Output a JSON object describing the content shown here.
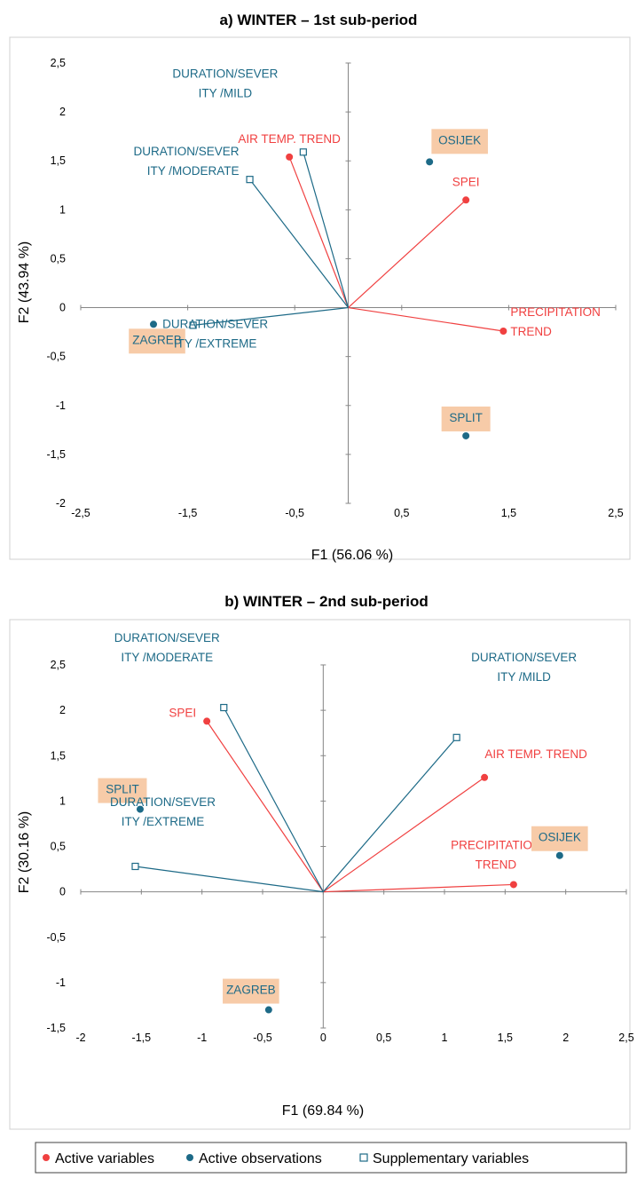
{
  "colors": {
    "active_variables": "#f04040",
    "active_observations": "#1d6a87",
    "supplementary_variables": "#1d6a87",
    "label_highlight": "#f7cba8"
  },
  "legend": [
    {
      "key": "active_variables",
      "label": "Active variables",
      "marker": "circle"
    },
    {
      "key": "active_observations",
      "label": "Active observations",
      "marker": "circle"
    },
    {
      "key": "supplementary_variables",
      "label": "Supplementary variables",
      "marker": "open-square"
    }
  ],
  "chart_data": [
    {
      "type": "scatter",
      "title": "a) WINTER – 1st sub-period",
      "xlabel": "F1 (56.06 %)",
      "ylabel": "F2 (43.94 %)",
      "xlim": [
        -2.5,
        2.5
      ],
      "ylim": [
        -2,
        2.5
      ],
      "xticks": [
        "-2,5",
        "-1,5",
        "-0,5",
        "0,5",
        "1,5",
        "2,5"
      ],
      "yticks": [
        "2,5",
        "2",
        "1,5",
        "1",
        "0,5",
        "0",
        "-0,5",
        "-1",
        "-1,5",
        "-2"
      ],
      "grid": false,
      "series": [
        {
          "name": "Active variables",
          "color": "#f04040",
          "marker": "circle",
          "vectors": true,
          "points": [
            {
              "x": -0.55,
              "y": 1.54,
              "label": [
                "AIR TEMP. TREND"
              ],
              "anchor": "above"
            },
            {
              "x": 1.1,
              "y": 1.1,
              "label": [
                "SPEI"
              ],
              "anchor": "above"
            },
            {
              "x": 1.45,
              "y": -0.24,
              "label": [
                "PRECIPITATION",
                "TREND"
              ],
              "anchor": "right"
            }
          ]
        },
        {
          "name": "Active observations",
          "color": "#1d6a87",
          "marker": "circle",
          "vectors": false,
          "points": [
            {
              "x": 0.76,
              "y": 1.49,
              "label": [
                "OSIJEK"
              ],
              "anchor": "above-right",
              "highlight": true
            },
            {
              "x": -1.82,
              "y": -0.17,
              "label": [
                "ZAGREB"
              ],
              "anchor": "below",
              "highlight": true
            },
            {
              "x": 1.1,
              "y": -1.31,
              "label": [
                "SPLIT"
              ],
              "anchor": "above",
              "highlight": true
            }
          ]
        },
        {
          "name": "Supplementary variables",
          "color": "#1d6a87",
          "marker": "open-square",
          "vectors": true,
          "points": [
            {
              "x": -0.42,
              "y": 1.59,
              "label": [
                "DURATION/SEVER",
                "ITY /MILD"
              ],
              "anchor": "mild-a"
            },
            {
              "x": -0.92,
              "y": 1.31,
              "label": [
                "DURATION/SEVER",
                "ITY /MODERATE"
              ],
              "anchor": "left"
            },
            {
              "x": -1.45,
              "y": -0.18,
              "label": [
                "DURATION/SEVER",
                "ITY /EXTREME"
              ],
              "anchor": "below-right"
            }
          ]
        }
      ]
    },
    {
      "type": "scatter",
      "title": "b) WINTER –  2nd sub-period",
      "xlabel": "F1 (69.84 %)",
      "ylabel": "F2 (30.16 %)",
      "xlim": [
        -2,
        2.5
      ],
      "ylim": [
        -1.5,
        2.5
      ],
      "xticks": [
        "-2",
        "-1,5",
        "-1",
        "-0,5",
        "0",
        "0,5",
        "1",
        "1,5",
        "2",
        "2,5"
      ],
      "yticks": [
        "2,5",
        "2",
        "1,5",
        "1",
        "0,5",
        "0",
        "-0,5",
        "-1",
        "-1,5"
      ],
      "grid": false,
      "series": [
        {
          "name": "Active variables",
          "color": "#f04040",
          "marker": "circle",
          "vectors": true,
          "points": [
            {
              "x": -0.96,
              "y": 1.88,
              "label": [
                "SPEI"
              ],
              "anchor": "left"
            },
            {
              "x": 1.33,
              "y": 1.26,
              "label": [
                "AIR TEMP. TREND"
              ],
              "anchor": "above-right-small"
            },
            {
              "x": 1.57,
              "y": 0.08,
              "label": [
                "PRECIPITATION",
                "TREND"
              ],
              "anchor": "above-left"
            }
          ]
        },
        {
          "name": "Active observations",
          "color": "#1d6a87",
          "marker": "circle",
          "vectors": false,
          "points": [
            {
              "x": -1.51,
              "y": 0.91,
              "label": [
                "SPLIT"
              ],
              "anchor": "above-left",
              "highlight": true
            },
            {
              "x": 1.95,
              "y": 0.4,
              "label": [
                "OSIJEK"
              ],
              "anchor": "above",
              "highlight": true
            },
            {
              "x": -0.45,
              "y": -1.3,
              "label": [
                "ZAGREB"
              ],
              "anchor": "above-left",
              "highlight": true
            }
          ]
        },
        {
          "name": "Supplementary variables",
          "color": "#1d6a87",
          "marker": "open-square",
          "vectors": true,
          "points": [
            {
              "x": -0.82,
              "y": 2.03,
              "label": [
                "DURATION/SEVER",
                "ITY /MODERATE"
              ],
              "anchor": "above-left-2"
            },
            {
              "x": 1.1,
              "y": 1.7,
              "label": [
                "DURATION/SEVER",
                "ITY /MILD"
              ],
              "anchor": "above-right-2"
            },
            {
              "x": -1.55,
              "y": 0.28,
              "label": [
                "DURATION/SEVER",
                "ITY /EXTREME"
              ],
              "anchor": "above-2"
            }
          ]
        }
      ]
    }
  ]
}
